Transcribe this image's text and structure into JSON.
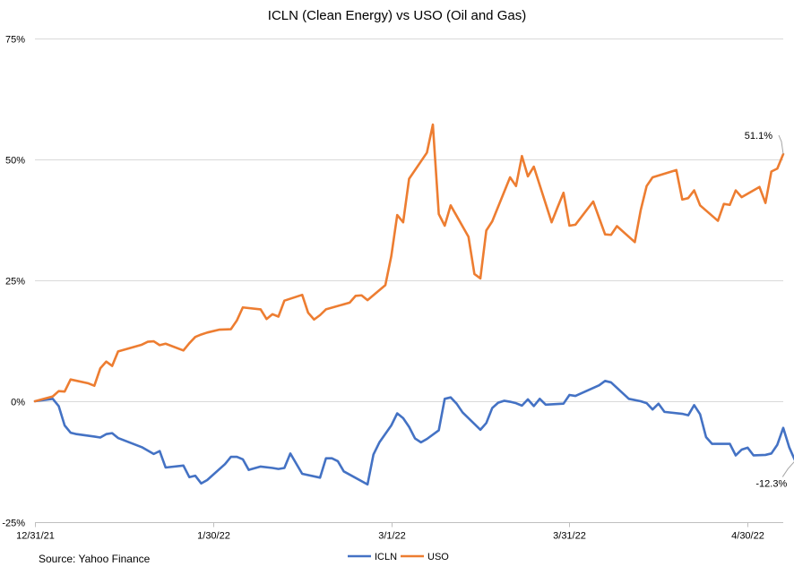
{
  "chart_data": {
    "type": "line",
    "title": "ICLN (Clean Energy) vs USO (Oil and Gas)",
    "source": "Source: Yahoo Finance",
    "xlabel": "",
    "ylabel": "",
    "x_range": [
      "2021-12-31",
      "2022-05-06"
    ],
    "x_ticks": [
      "12/31/21",
      "1/30/22",
      "3/1/22",
      "3/31/22",
      "4/30/22"
    ],
    "x_tick_dates": [
      "2021-12-31",
      "2022-01-30",
      "2022-03-01",
      "2022-03-31",
      "2022-04-30"
    ],
    "ylim": [
      -25,
      75
    ],
    "y_ticks": [
      -25,
      0,
      25,
      50,
      75
    ],
    "y_tick_labels": [
      "-25%",
      "0%",
      "25%",
      "50%",
      "75%"
    ],
    "y_unit": "%",
    "grid": true,
    "legend_position": "bottom",
    "series": [
      {
        "name": "ICLN",
        "color": "#4472C4",
        "points": [
          [
            "2021-12-31",
            0
          ],
          [
            "2022-01-03",
            0.5
          ],
          [
            "2022-01-04",
            -1
          ],
          [
            "2022-01-05",
            -5
          ],
          [
            "2022-01-06",
            -6.5
          ],
          [
            "2022-01-07",
            -6.8
          ],
          [
            "2022-01-10",
            -7.3
          ],
          [
            "2022-01-11",
            -7.5
          ],
          [
            "2022-01-12",
            -6.8
          ],
          [
            "2022-01-13",
            -6.6
          ],
          [
            "2022-01-14",
            -7.6
          ],
          [
            "2022-01-18",
            -9.5
          ],
          [
            "2022-01-20",
            -10.9
          ],
          [
            "2022-01-21",
            -10.3
          ],
          [
            "2022-01-22",
            -13.7
          ],
          [
            "2022-01-25",
            -13.3
          ],
          [
            "2022-01-26",
            -15.7
          ],
          [
            "2022-01-27",
            -15.4
          ],
          [
            "2022-01-28",
            -17
          ],
          [
            "2022-01-29",
            -16.3
          ],
          [
            "2022-02-01",
            -13
          ],
          [
            "2022-02-02",
            -11.5
          ],
          [
            "2022-02-03",
            -11.5
          ],
          [
            "2022-02-04",
            -12
          ],
          [
            "2022-02-05",
            -14.2
          ],
          [
            "2022-02-07",
            -13.5
          ],
          [
            "2022-02-09",
            -13.8
          ],
          [
            "2022-02-10",
            -14
          ],
          [
            "2022-02-11",
            -13.8
          ],
          [
            "2022-02-12",
            -10.8
          ],
          [
            "2022-02-14",
            -15
          ],
          [
            "2022-02-17",
            -15.8
          ],
          [
            "2022-02-18",
            -11.8
          ],
          [
            "2022-02-19",
            -11.8
          ],
          [
            "2022-02-20",
            -12.4
          ],
          [
            "2022-02-21",
            -14.5
          ],
          [
            "2022-02-25",
            -17.2
          ],
          [
            "2022-02-26",
            -11
          ],
          [
            "2022-02-27",
            -8.5
          ],
          [
            "2022-03-01",
            -5
          ],
          [
            "2022-03-02",
            -2.5
          ],
          [
            "2022-03-03",
            -3.5
          ],
          [
            "2022-03-04",
            -5.3
          ],
          [
            "2022-03-05",
            -7.7
          ],
          [
            "2022-03-06",
            -8.5
          ],
          [
            "2022-03-07",
            -7.8
          ],
          [
            "2022-03-09",
            -6
          ],
          [
            "2022-03-10",
            0.5
          ],
          [
            "2022-03-11",
            0.8
          ],
          [
            "2022-03-12",
            -0.5
          ],
          [
            "2022-03-13",
            -2.3
          ],
          [
            "2022-03-16",
            -5.9
          ],
          [
            "2022-03-17",
            -4.5
          ],
          [
            "2022-03-18",
            -1.4
          ],
          [
            "2022-03-19",
            -0.3
          ],
          [
            "2022-03-20",
            0.1
          ],
          [
            "2022-03-21",
            -0.1
          ],
          [
            "2022-03-22",
            -0.4
          ],
          [
            "2022-03-23",
            -0.9
          ],
          [
            "2022-03-24",
            0.4
          ],
          [
            "2022-03-25",
            -1
          ],
          [
            "2022-03-26",
            0.5
          ],
          [
            "2022-03-27",
            -0.7
          ],
          [
            "2022-03-30",
            -0.5
          ],
          [
            "2022-03-31",
            1.3
          ],
          [
            "2022-04-01",
            1.1
          ],
          [
            "2022-04-05",
            3.3
          ],
          [
            "2022-04-06",
            4.2
          ],
          [
            "2022-04-07",
            3.9
          ],
          [
            "2022-04-10",
            0.5
          ],
          [
            "2022-04-12",
            0
          ],
          [
            "2022-04-13",
            -0.4
          ],
          [
            "2022-04-14",
            -1.7
          ],
          [
            "2022-04-15",
            -0.5
          ],
          [
            "2022-04-16",
            -2.2
          ],
          [
            "2022-04-19",
            -2.6
          ],
          [
            "2022-04-20",
            -2.9
          ],
          [
            "2022-04-21",
            -0.8
          ],
          [
            "2022-04-22",
            -2.7
          ],
          [
            "2022-04-23",
            -7.4
          ],
          [
            "2022-04-24",
            -8.8
          ],
          [
            "2022-04-27",
            -8.8
          ],
          [
            "2022-04-28",
            -11.2
          ],
          [
            "2022-04-29",
            -10
          ],
          [
            "2022-04-30",
            -9.6
          ],
          [
            "2022-05-01",
            -11.2
          ],
          [
            "2022-05-03",
            -11.1
          ],
          [
            "2022-05-04",
            -10.8
          ],
          [
            "2022-05-05",
            -9
          ],
          [
            "2022-05-06",
            -5.5
          ],
          [
            "2022-05-07",
            -9.5
          ],
          [
            "2022-05-08",
            -12.3
          ]
        ]
      },
      {
        "name": "USO",
        "color": "#ED7D31",
        "points": [
          [
            "2021-12-31",
            0
          ],
          [
            "2022-01-03",
            1
          ],
          [
            "2022-01-04",
            2.1
          ],
          [
            "2022-01-05",
            2
          ],
          [
            "2022-01-06",
            4.5
          ],
          [
            "2022-01-09",
            3.7
          ],
          [
            "2022-01-10",
            3.2
          ],
          [
            "2022-01-11",
            6.8
          ],
          [
            "2022-01-12",
            8.2
          ],
          [
            "2022-01-13",
            7.3
          ],
          [
            "2022-01-14",
            10.3
          ],
          [
            "2022-01-18",
            11.7
          ],
          [
            "2022-01-19",
            12.3
          ],
          [
            "2022-01-20",
            12.4
          ],
          [
            "2022-01-21",
            11.6
          ],
          [
            "2022-01-22",
            11.9
          ],
          [
            "2022-01-25",
            10.5
          ],
          [
            "2022-01-26",
            12
          ],
          [
            "2022-01-27",
            13.3
          ],
          [
            "2022-01-28",
            13.8
          ],
          [
            "2022-01-29",
            14.2
          ],
          [
            "2022-01-31",
            14.8
          ],
          [
            "2022-02-02",
            14.9
          ],
          [
            "2022-02-03",
            16.7
          ],
          [
            "2022-02-04",
            19.4
          ],
          [
            "2022-02-07",
            19
          ],
          [
            "2022-02-08",
            17
          ],
          [
            "2022-02-09",
            18
          ],
          [
            "2022-02-10",
            17.5
          ],
          [
            "2022-02-11",
            20.8
          ],
          [
            "2022-02-14",
            22
          ],
          [
            "2022-02-15",
            18.3
          ],
          [
            "2022-02-16",
            16.9
          ],
          [
            "2022-02-17",
            17.8
          ],
          [
            "2022-02-18",
            19
          ],
          [
            "2022-02-22",
            20.4
          ],
          [
            "2022-02-23",
            21.8
          ],
          [
            "2022-02-24",
            21.9
          ],
          [
            "2022-02-25",
            20.9
          ],
          [
            "2022-02-28",
            24
          ],
          [
            "2022-03-01",
            30
          ],
          [
            "2022-03-02",
            38.5
          ],
          [
            "2022-03-03",
            37
          ],
          [
            "2022-03-04",
            46
          ],
          [
            "2022-03-07",
            51.4
          ],
          [
            "2022-03-08",
            57.2
          ],
          [
            "2022-03-09",
            38.7
          ],
          [
            "2022-03-10",
            36.3
          ],
          [
            "2022-03-11",
            40.5
          ],
          [
            "2022-03-14",
            34
          ],
          [
            "2022-03-15",
            26.3
          ],
          [
            "2022-03-16",
            25.4
          ],
          [
            "2022-03-17",
            35.3
          ],
          [
            "2022-03-18",
            37.2
          ],
          [
            "2022-03-21",
            46.3
          ],
          [
            "2022-03-22",
            44.5
          ],
          [
            "2022-03-23",
            50.7
          ],
          [
            "2022-03-24",
            46.5
          ],
          [
            "2022-03-25",
            48.5
          ],
          [
            "2022-03-28",
            37
          ],
          [
            "2022-03-29",
            40.1
          ],
          [
            "2022-03-30",
            43.1
          ],
          [
            "2022-03-31",
            36.3
          ],
          [
            "2022-04-01",
            36.5
          ],
          [
            "2022-04-04",
            41.3
          ],
          [
            "2022-04-05",
            37.9
          ],
          [
            "2022-04-06",
            34.5
          ],
          [
            "2022-04-07",
            34.4
          ],
          [
            "2022-04-08",
            36.2
          ],
          [
            "2022-04-11",
            32.9
          ],
          [
            "2022-04-12",
            39.5
          ],
          [
            "2022-04-13",
            44.5
          ],
          [
            "2022-04-14",
            46.3
          ],
          [
            "2022-04-18",
            47.8
          ],
          [
            "2022-04-19",
            41.7
          ],
          [
            "2022-04-20",
            42
          ],
          [
            "2022-04-21",
            43.6
          ],
          [
            "2022-04-22",
            40.5
          ],
          [
            "2022-04-25",
            37.3
          ],
          [
            "2022-04-26",
            40.8
          ],
          [
            "2022-04-27",
            40.6
          ],
          [
            "2022-04-28",
            43.6
          ],
          [
            "2022-04-29",
            42.2
          ],
          [
            "2022-05-02",
            44.3
          ],
          [
            "2022-05-03",
            41
          ],
          [
            "2022-05-04",
            47.5
          ],
          [
            "2022-05-05",
            48.1
          ],
          [
            "2022-05-06",
            51.1
          ]
        ]
      }
    ],
    "annotations": [
      {
        "series": "USO",
        "date": "2022-05-06",
        "value": 51.1,
        "text": "51.1%"
      },
      {
        "series": "ICLN",
        "date": "2022-05-08",
        "value": -12.3,
        "text": "-12.3%"
      }
    ]
  }
}
